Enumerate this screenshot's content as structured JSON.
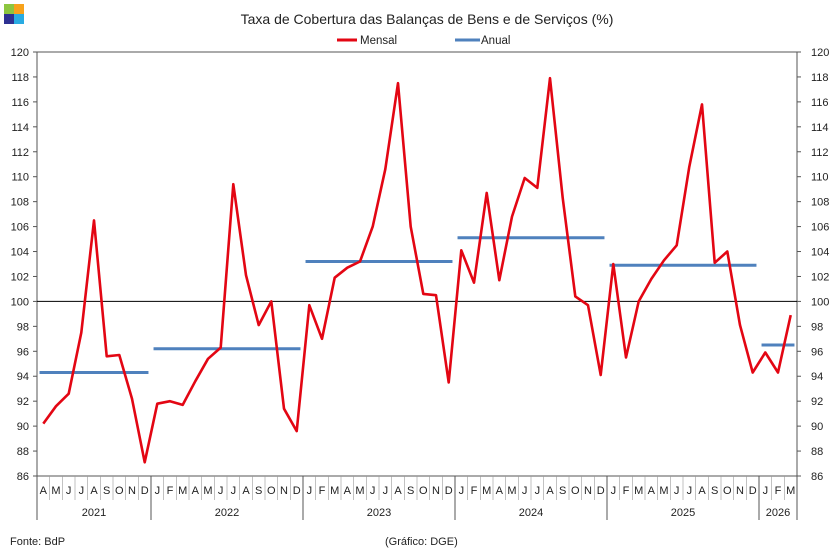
{
  "logo": {
    "colors": [
      "#8cc63f",
      "#f7a21b",
      "#2e3192",
      "#29abe2"
    ]
  },
  "footer": {
    "source": "Fonte:  BdP",
    "credit": "(Gráfico: DGE)"
  },
  "chart_data": {
    "type": "line",
    "title": "Taxa de Cobertura das Balanças de Bens e de Serviços (%)",
    "legend": {
      "placement": "top-center",
      "entries": [
        "Mensal",
        "Anual"
      ]
    },
    "ylim": [
      86,
      120
    ],
    "yticks": [
      86,
      88,
      90,
      92,
      94,
      96,
      98,
      100,
      102,
      104,
      106,
      108,
      110,
      112,
      114,
      116,
      118,
      120
    ],
    "y_axes": [
      "left",
      "right"
    ],
    "reference_line": 100,
    "grid": false,
    "month_labels": [
      "A",
      "M",
      "J",
      "J",
      "A",
      "S",
      "O",
      "N",
      "D",
      "J",
      "F",
      "M",
      "A",
      "M",
      "J",
      "J",
      "A",
      "S",
      "O",
      "N",
      "D",
      "J",
      "F",
      "M",
      "A",
      "M",
      "J",
      "J",
      "A",
      "S",
      "O",
      "N",
      "D",
      "J",
      "F",
      "M",
      "A",
      "M",
      "J",
      "J",
      "A",
      "S",
      "O",
      "N",
      "D",
      "J",
      "F",
      "M",
      "A",
      "M",
      "J",
      "J",
      "A",
      "S",
      "O",
      "N",
      "D",
      "J",
      "F",
      "M"
    ],
    "years": [
      {
        "label": "2021",
        "start": 0,
        "count": 9
      },
      {
        "label": "2022",
        "start": 9,
        "count": 12
      },
      {
        "label": "2023",
        "start": 21,
        "count": 12
      },
      {
        "label": "2024",
        "start": 33,
        "count": 12
      },
      {
        "label": "2025",
        "start": 45,
        "count": 12
      },
      {
        "label": "2026",
        "start": 57,
        "count": 3
      }
    ],
    "series": [
      {
        "name": "Mensal",
        "color": "#e30613",
        "values": [
          90.2,
          91.6,
          92.6,
          97.5,
          106.5,
          95.6,
          95.7,
          92.2,
          87.1,
          91.8,
          92.0,
          91.7,
          93.6,
          95.4,
          96.3,
          109.4,
          102.1,
          98.1,
          100.0,
          91.4,
          89.6,
          99.7,
          97.0,
          101.9,
          102.7,
          103.2,
          106.0,
          110.6,
          117.5,
          106.0,
          100.6,
          100.5,
          93.5,
          104.1,
          101.5,
          108.7,
          101.7,
          106.8,
          109.9,
          109.1,
          117.9,
          108.3,
          100.4,
          99.7,
          94.1,
          103.0,
          95.5,
          100.0,
          101.8,
          103.3,
          104.5,
          110.8,
          115.8,
          103.1,
          104.0,
          98.1,
          94.3,
          95.9,
          94.3,
          98.9
        ]
      },
      {
        "name": "Anual",
        "color": "#4f81bd",
        "segments": [
          {
            "from": 0,
            "to": 8,
            "value": 94.3
          },
          {
            "from": 9,
            "to": 20,
            "value": 96.2
          },
          {
            "from": 21,
            "to": 32,
            "value": 103.2
          },
          {
            "from": 33,
            "to": 44,
            "value": 105.1
          },
          {
            "from": 45,
            "to": 56,
            "value": 102.9
          },
          {
            "from": 57,
            "to": 59,
            "value": 96.5
          }
        ]
      }
    ]
  }
}
